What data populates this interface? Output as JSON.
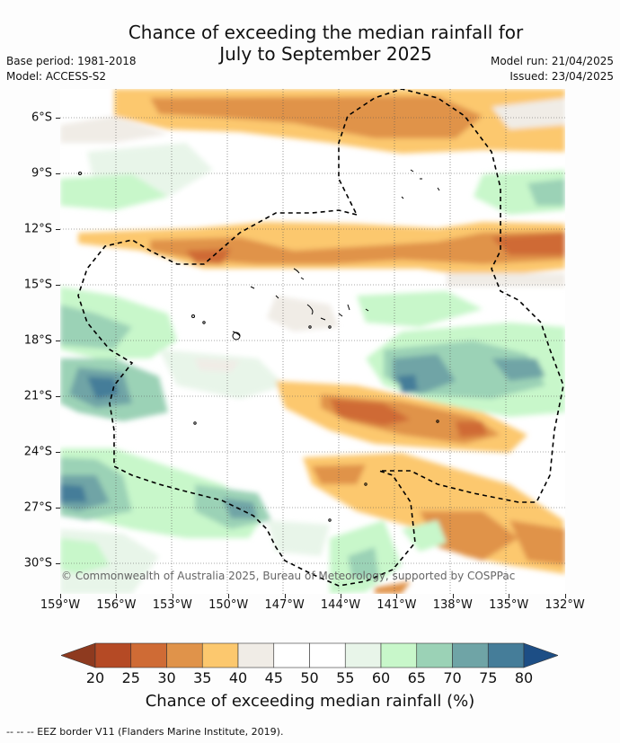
{
  "title_line1": "Chance of exceeding the median rainfall for",
  "title_line2": "July to September 2025",
  "base_period": "Base period: 1981-2018",
  "model": "Model: ACCESS-S2",
  "model_run": "Model run: 21/04/2025",
  "issued": "Issued: 23/04/2025",
  "copyright": "© Commonwealth of Australia 2025, Bureau of Meteorology, supported by COSPPac",
  "footnote": "--  --  -- EEZ border V11 (Flanders Marine Institute, 2019).",
  "lat_labels": [
    "6°S",
    "9°S",
    "12°S",
    "15°S",
    "18°S",
    "21°S",
    "24°S",
    "27°S",
    "30°S"
  ],
  "lon_labels": [
    "159°W",
    "156°W",
    "153°W",
    "150°W",
    "147°W",
    "144°W",
    "141°W",
    "138°W",
    "135°W",
    "132°W"
  ],
  "colorbar": {
    "title": "Chance of exceeding median rainfall (%)",
    "labels": [
      "20",
      "25",
      "30",
      "35",
      "40",
      "45",
      "50",
      "55",
      "60",
      "65",
      "70",
      "75",
      "80"
    ],
    "colors": [
      "#8e3a1f",
      "#b54a25",
      "#cf6b35",
      "#e0934a",
      "#fcc86e",
      "#f0ece6",
      "#ffffff",
      "#ffffff",
      "#e8f5e9",
      "#c8f7ca",
      "#9bd2b6",
      "#6fa4a6",
      "#457d99",
      "#1d4e85"
    ]
  },
  "map_colors": {
    "land_outline": "#000000",
    "eez_line": "#000000",
    "grid": "#555555"
  }
}
